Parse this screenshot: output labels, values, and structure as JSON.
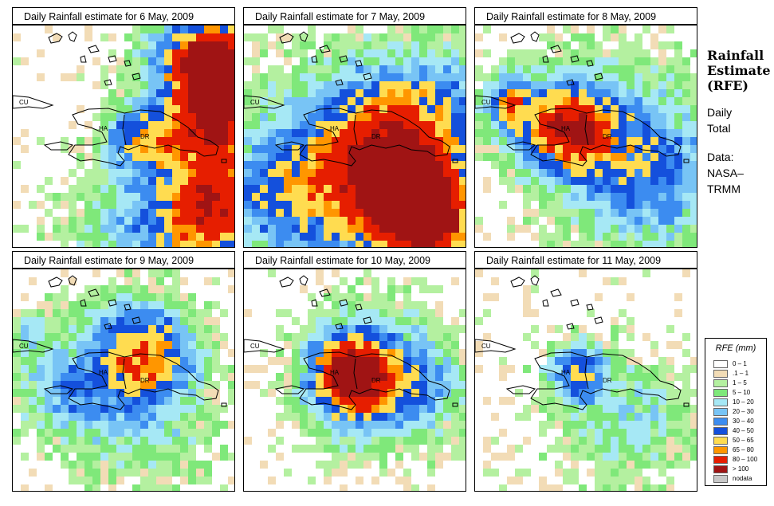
{
  "panels": [
    {
      "title": "Daily Rainfall estimate for  6 May, 2009"
    },
    {
      "title": "Daily Rainfall estimate for  7 May, 2009"
    },
    {
      "title": "Daily Rainfall estimate for  8 May, 2009"
    },
    {
      "title": "Daily Rainfall estimate for  9 May, 2009"
    },
    {
      "title": "Daily Rainfall estimate for  10 May, 2009"
    },
    {
      "title": "Daily Rainfall estimate for  11 May, 2009"
    }
  ],
  "map_labels": {
    "cu": "CU",
    "ha": "HA",
    "dr": "DR"
  },
  "side": {
    "title_line1": "Rainfall",
    "title_line2": "Estimate",
    "title_line3": "(RFE)",
    "line1": "Daily",
    "line2": "Total",
    "line3": "Data:",
    "line4": "NASA–",
    "line5": "TRMM"
  },
  "legend": {
    "title": "RFE (mm)",
    "items": [
      {
        "label": "0 – 1",
        "color": "#ffffff"
      },
      {
        "label": ".1 – 1",
        "color": "#f2dcb6"
      },
      {
        "label": "1 – 5",
        "color": "#b4f0a0"
      },
      {
        "label": "5 – 10",
        "color": "#7fe87a"
      },
      {
        "label": "10 – 20",
        "color": "#a6e8f5"
      },
      {
        "label": "20 – 30",
        "color": "#78c4f5"
      },
      {
        "label": "30 – 40",
        "color": "#3c8cf0"
      },
      {
        "label": "40 – 50",
        "color": "#1450dc"
      },
      {
        "label": "50 – 65",
        "color": "#ffdc50"
      },
      {
        "label": "65 – 80",
        "color": "#ff9600"
      },
      {
        "label": "80 – 100",
        "color": "#e61e00"
      },
      {
        "label": "> 100",
        "color": "#a01414"
      },
      {
        "label": "nodata",
        "color": "#c8c8c8"
      }
    ]
  }
}
